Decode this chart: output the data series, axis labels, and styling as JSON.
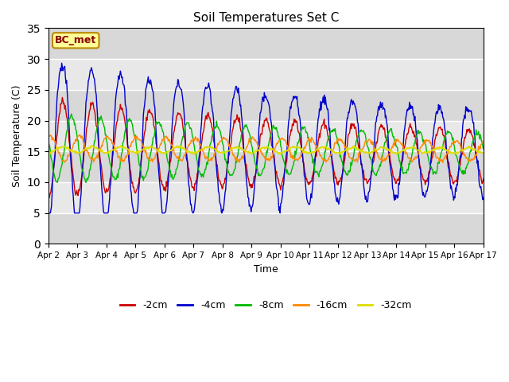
{
  "title": "Soil Temperatures Set C",
  "xlabel": "Time",
  "ylabel": "Soil Temperature (C)",
  "ylim": [
    0,
    35
  ],
  "yticks": [
    0,
    5,
    10,
    15,
    20,
    25,
    30,
    35
  ],
  "series_labels": [
    "-2cm",
    "-4cm",
    "-8cm",
    "-16cm",
    "-32cm"
  ],
  "series_colors": [
    "#cc0000",
    "#0000cc",
    "#00bb00",
    "#ff8800",
    "#dddd00"
  ],
  "annotation_text": "BC_met",
  "annotation_bg": "#ffff99",
  "annotation_border": "#bb8800",
  "plot_bg": "#e8e8e8",
  "fig_bg": "#ffffff",
  "grid_color": "#ffffff",
  "start_day": 2,
  "end_day": 17,
  "points_per_day": 48
}
